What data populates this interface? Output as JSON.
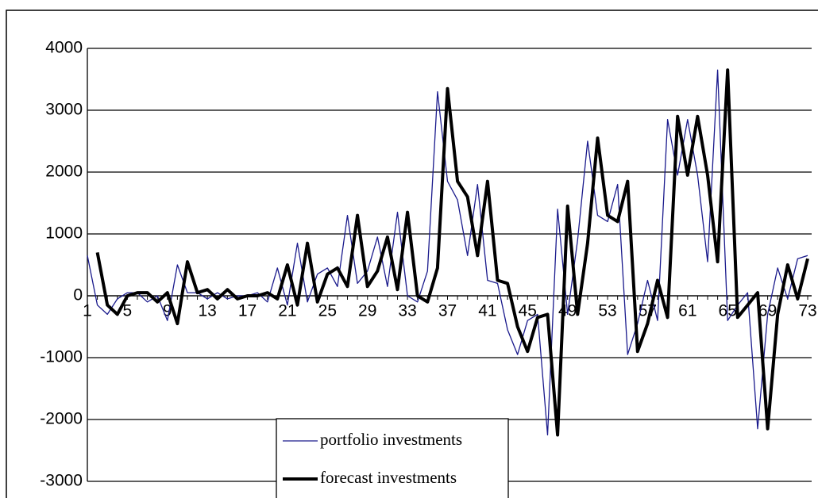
{
  "chart_data": {
    "type": "line",
    "categories": [
      "1",
      null,
      null,
      null,
      "5",
      null,
      null,
      null,
      "9",
      null,
      null,
      null,
      "13",
      null,
      null,
      null,
      "17",
      null,
      null,
      null,
      "21",
      null,
      null,
      null,
      "25",
      null,
      null,
      null,
      "29",
      null,
      null,
      null,
      "33",
      null,
      null,
      null,
      "37",
      null,
      null,
      null,
      "41",
      null,
      null,
      null,
      "45",
      null,
      null,
      null,
      "49",
      null,
      null,
      null,
      "53",
      null,
      null,
      null,
      "57",
      null,
      null,
      null,
      "61",
      null,
      null,
      null,
      "65",
      null,
      null,
      null,
      "69",
      null,
      null,
      null,
      "73"
    ],
    "series": [
      {
        "name": "portfolio investments",
        "color": "#1a1a8c",
        "width": 1.3,
        "values": [
          650,
          -150,
          -300,
          -50,
          50,
          50,
          -100,
          0,
          -400,
          500,
          50,
          50,
          -50,
          50,
          -50,
          0,
          0,
          50,
          -100,
          450,
          -150,
          850,
          -100,
          350,
          450,
          150,
          1300,
          200,
          400,
          950,
          150,
          1350,
          0,
          -100,
          400,
          3300,
          1850,
          1550,
          650,
          1800,
          250,
          200,
          -550,
          -950,
          -400,
          -300,
          -2250,
          1400,
          -300,
          900,
          2500,
          1300,
          1200,
          1800,
          -950,
          -450,
          250,
          -400,
          2850,
          1950,
          2850,
          1950,
          550,
          3650,
          -400,
          -150,
          50,
          -2150,
          -300,
          450,
          -50,
          600,
          650
        ]
      },
      {
        "name": "forecast investments",
        "color": "#000000",
        "width": 4,
        "values": [
          null,
          700,
          -150,
          -300,
          0,
          50,
          50,
          -100,
          50,
          -450,
          550,
          50,
          100,
          -50,
          100,
          -50,
          0,
          0,
          50,
          -50,
          500,
          -150,
          850,
          -100,
          350,
          450,
          150,
          1300,
          150,
          400,
          950,
          100,
          1350,
          0,
          -100,
          450,
          3350,
          1850,
          1600,
          650,
          1850,
          250,
          200,
          -500,
          -900,
          -350,
          -300,
          -2250,
          1450,
          -300,
          850,
          2550,
          1300,
          1200,
          1850,
          -900,
          -450,
          250,
          -350,
          2900,
          1950,
          2900,
          1950,
          550,
          3650,
          -350,
          -150,
          50,
          -2150,
          -300,
          500,
          -50,
          600
        ]
      }
    ],
    "ylim": [
      -3000,
      4000
    ],
    "yticks": [
      -3000,
      -2000,
      -1000,
      0,
      1000,
      2000,
      3000,
      4000
    ],
    "grid": true
  }
}
